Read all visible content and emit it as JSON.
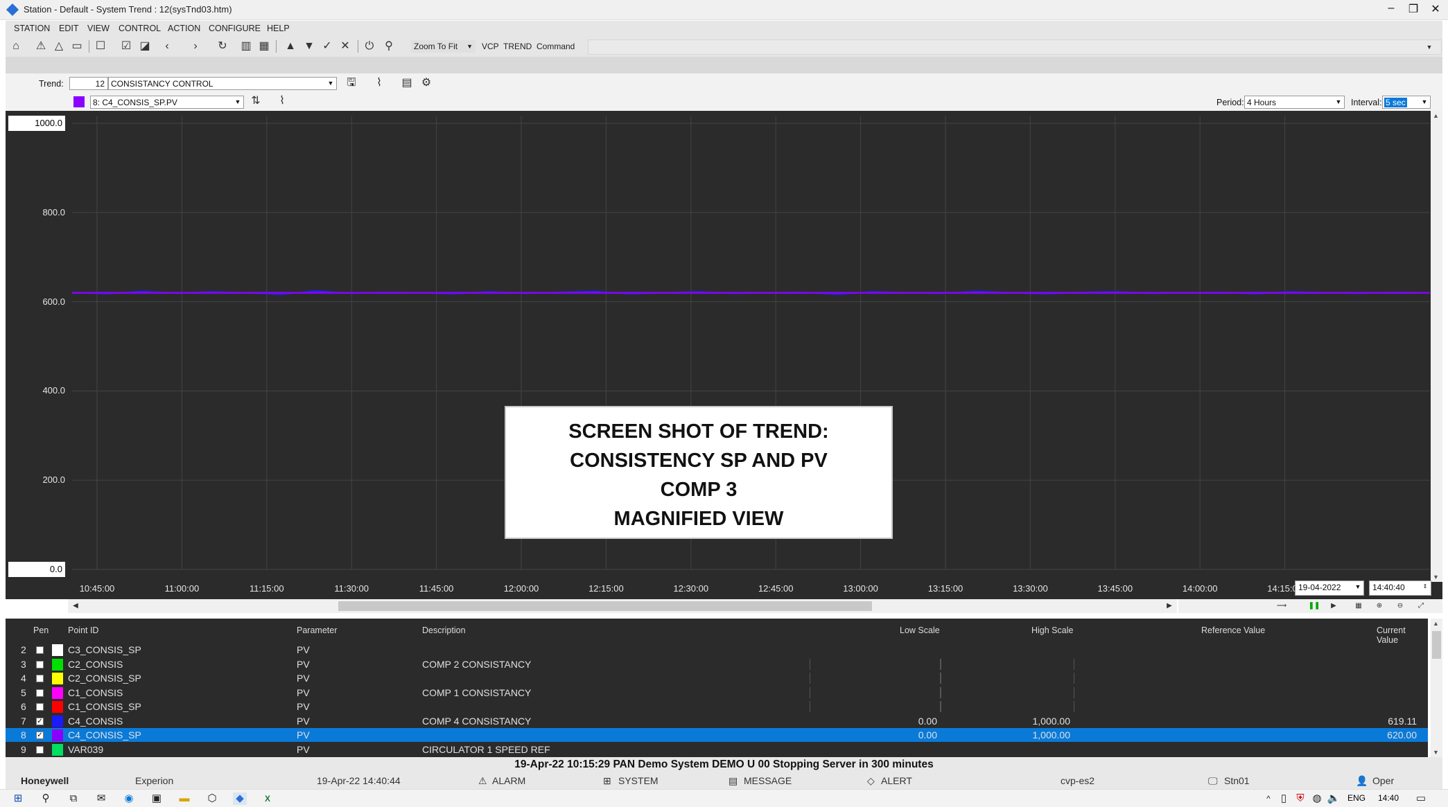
{
  "window": {
    "title": "Station - Default - System Trend : 12(sysTnd03.htm)",
    "min": "–",
    "max": "❐",
    "close": "✕"
  },
  "menu": [
    "STATION",
    "EDIT",
    "VIEW",
    "CONTROL",
    "ACTION",
    "CONFIGURE",
    "HELP"
  ],
  "toolbar": {
    "zoom_to_fit": "Zoom To Fit",
    "vcp": "VCP",
    "trend": "TREND",
    "command": "Command",
    "command_value": ""
  },
  "trend_config": {
    "trend_label": "Trend:",
    "trend_number": "12",
    "trend_name": "CONSISTANCY CONTROL",
    "selected_pen": "8: C4_CONSIS_SP.PV",
    "selected_pen_color": "#8a00ff",
    "period_label": "Period:",
    "period_value": "4 Hours",
    "interval_label": "Interval:",
    "interval_value": "5 sec"
  },
  "chart_data": {
    "type": "line",
    "title": "",
    "xlabel": "",
    "ylabel": "",
    "ylim": [
      0,
      1000
    ],
    "y_ticks": [
      "1000.0",
      "800.0",
      "600.0",
      "400.0",
      "200.0",
      "0.0"
    ],
    "x_ticks": [
      "10:45:00",
      "11:00:00",
      "11:15:00",
      "11:30:00",
      "11:45:00",
      "12:00:00",
      "12:15:00",
      "12:30:00",
      "12:45:00",
      "13:00:00",
      "13:15:00",
      "13:30:00",
      "13:45:00",
      "14:00:00",
      "14:15:00"
    ],
    "grid": true,
    "series": [
      {
        "color": "#2020ff",
        "values": [
          621,
          618,
          623,
          619,
          622,
          620,
          617,
          624,
          619,
          621,
          620,
          618,
          622,
          619,
          621,
          623,
          618,
          620,
          622,
          619,
          620,
          621,
          617,
          622,
          620,
          619,
          623,
          620,
          618,
          621,
          622,
          619,
          620,
          621,
          618,
          622,
          620,
          619,
          621,
          620
        ]
      },
      {
        "color": "#8a00ff",
        "values": [
          620,
          620,
          620,
          620,
          620,
          620,
          620,
          620,
          620,
          620,
          620,
          620,
          620,
          620,
          620,
          620,
          620,
          620,
          620,
          620,
          620,
          620,
          620,
          620,
          620,
          620,
          620,
          620,
          620,
          620,
          620,
          620,
          620,
          620,
          620,
          620,
          620,
          620,
          620,
          620
        ]
      }
    ],
    "end_date": "19-04-2022",
    "end_time": "14:40:40"
  },
  "overlay": {
    "lines": [
      "SCREEN SHOT OF TREND:",
      "CONSISTENCY SP AND PV",
      "COMP 3",
      "MAGNIFIED VIEW"
    ]
  },
  "table": {
    "headers": [
      "Pen",
      "Point ID",
      "Parameter",
      "Description",
      "Low Scale",
      "High Scale",
      "Reference Value",
      "Current Value"
    ],
    "rows": [
      {
        "num": "2",
        "checked": false,
        "color": "#ffffff",
        "point": "C3_CONSIS_SP",
        "param": "PV",
        "desc": "",
        "low": "",
        "high": "",
        "ref": "",
        "cur": "",
        "selected": false
      },
      {
        "num": "3",
        "checked": false,
        "color": "#00e000",
        "point": "C2_CONSIS",
        "param": "PV",
        "desc": "COMP 2 CONSISTANCY",
        "low": "",
        "high": "",
        "ref": "",
        "cur": "",
        "selected": false
      },
      {
        "num": "4",
        "checked": false,
        "color": "#ffff00",
        "point": "C2_CONSIS_SP",
        "param": "PV",
        "desc": "",
        "low": "",
        "high": "",
        "ref": "",
        "cur": "",
        "selected": false
      },
      {
        "num": "5",
        "checked": false,
        "color": "#ff00ff",
        "point": "C1_CONSIS",
        "param": "PV",
        "desc": "COMP 1 CONSISTANCY",
        "low": "",
        "high": "",
        "ref": "",
        "cur": "",
        "selected": false
      },
      {
        "num": "6",
        "checked": false,
        "color": "#ff0000",
        "point": "C1_CONSIS_SP",
        "param": "PV",
        "desc": "",
        "low": "",
        "high": "",
        "ref": "",
        "cur": "",
        "selected": false
      },
      {
        "num": "7",
        "checked": true,
        "color": "#1a1aff",
        "point": "C4_CONSIS",
        "param": "PV",
        "desc": "COMP 4 CONSISTANCY",
        "low": "0.00",
        "high": "1,000.00",
        "ref": "",
        "cur": "619.11",
        "selected": false
      },
      {
        "num": "8",
        "checked": true,
        "color": "#8a00ff",
        "point": "C4_CONSIS_SP",
        "param": "PV",
        "desc": "",
        "low": "0.00",
        "high": "1,000.00",
        "ref": "",
        "cur": "620.00",
        "selected": true
      },
      {
        "num": "9",
        "checked": false,
        "color": "#00e060",
        "point": "VAR039",
        "param": "PV",
        "desc": "CIRCULATOR 1 SPEED REF",
        "low": "",
        "high": "",
        "ref": "",
        "cur": "",
        "selected": false
      }
    ]
  },
  "status": {
    "message": "19-Apr-22  10:15:29  PAN   Demo System   DEMO   U 00  Stopping Server in 300 minutes"
  },
  "info_bar": {
    "brand": "Honeywell",
    "product": "Experion",
    "datetime": "19-Apr-22   14:40:44",
    "alarm": "ALARM",
    "system": "SYSTEM",
    "message": "MESSAGE",
    "alert": "ALERT",
    "server": "cvp-es2",
    "station": "Stn01",
    "user": "Oper"
  },
  "taskbar": {
    "lang": "ENG",
    "time": "14:40"
  }
}
